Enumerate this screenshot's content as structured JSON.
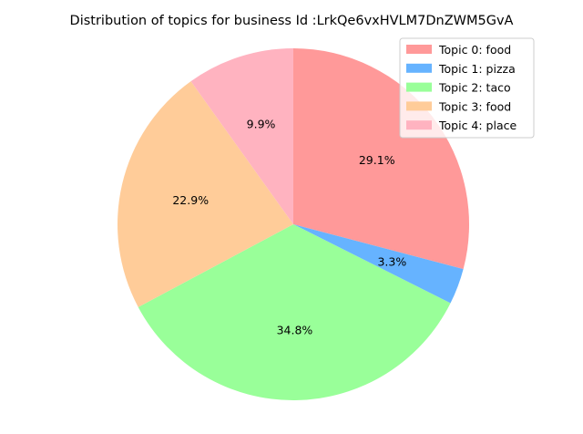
{
  "chart_data": {
    "type": "pie",
    "title": "Distribution of topics for business Id :LrkQe6vxHVLM7DnZWM5GvA",
    "start_angle_deg": 90,
    "direction": "clockwise",
    "legend_position": "top-right",
    "slices": [
      {
        "label": "Topic 0: food",
        "value": 29.1,
        "pct_label": "29.1%",
        "color": "#ff9999"
      },
      {
        "label": "Topic 1: pizza",
        "value": 3.3,
        "pct_label": "3.3%",
        "color": "#66b3ff"
      },
      {
        "label": "Topic 2: taco",
        "value": 34.8,
        "pct_label": "34.8%",
        "color": "#99ff99"
      },
      {
        "label": "Topic 3: food",
        "value": 22.9,
        "pct_label": "22.9%",
        "color": "#ffcc99"
      },
      {
        "label": "Topic 4: place",
        "value": 9.9,
        "pct_label": "9.9%",
        "color": "#ffb3c0"
      }
    ]
  }
}
